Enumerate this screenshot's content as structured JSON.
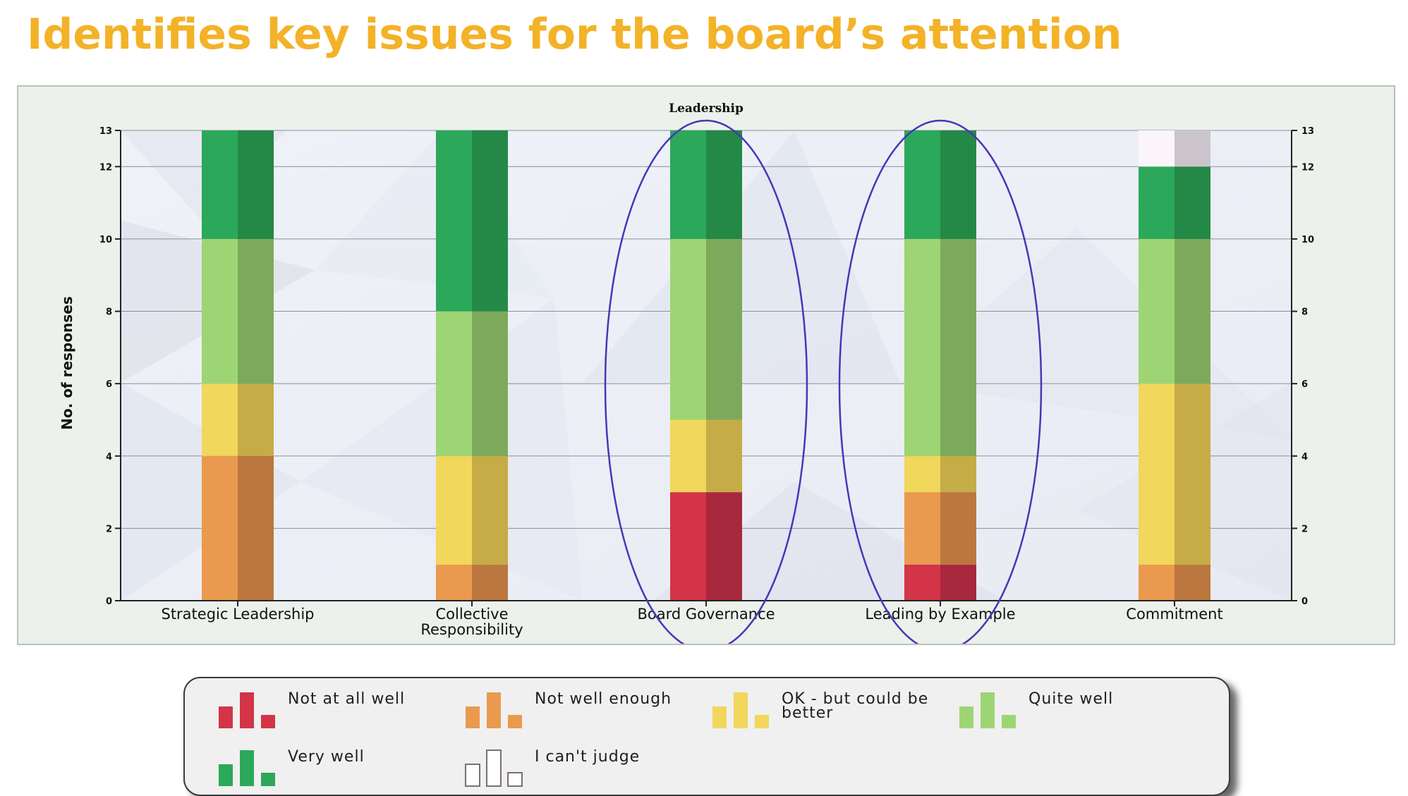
{
  "title": "Identifies key issues for the board’s attention",
  "chart_data": {
    "type": "bar",
    "stacked": true,
    "title": "Leadership",
    "ylabel": "No. of responses",
    "xlabel": "",
    "categories": [
      "Strategic Leadership",
      "Collective Responsibility",
      "Board Governance",
      "Leading by Example",
      "Commitment"
    ],
    "category_lines": [
      [
        "Strategic Leadership"
      ],
      [
        "Collective",
        "Responsibility"
      ],
      [
        "Board Governance"
      ],
      [
        "Leading by Example"
      ],
      [
        "Commitment"
      ]
    ],
    "ylim": [
      0,
      13
    ],
    "yticks": [
      0,
      2,
      4,
      6,
      8,
      10,
      12,
      13
    ],
    "grid": true,
    "series": [
      {
        "name": "Not at all well",
        "values": [
          0,
          0,
          3,
          1,
          0
        ],
        "color": "#d33447",
        "shade": "#a8283d"
      },
      {
        "name": "Not well enough",
        "values": [
          4,
          1,
          0,
          2,
          1
        ],
        "color": "#ea9a4e",
        "shade": "#bb773e"
      },
      {
        "name": "OK - but could be better",
        "values": [
          2,
          3,
          2,
          1,
          5
        ],
        "color": "#f1d75b",
        "shade": "#c6ac47"
      },
      {
        "name": "Quite well",
        "values": [
          4,
          4,
          5,
          6,
          4
        ],
        "color": "#9dd574",
        "shade": "#7daa5a"
      },
      {
        "name": "Very well",
        "values": [
          3,
          5,
          3,
          3,
          2
        ],
        "color": "#2ca85a",
        "shade": "#248847"
      },
      {
        "name": "I can't judge",
        "values": [
          0,
          0,
          0,
          0,
          1
        ],
        "color": "#fbf5fa",
        "shade": "#cbc5cb"
      }
    ],
    "highlighted": [
      "Board Governance",
      "Leading by Example"
    ],
    "highlight_color": "#4b35b8"
  }
}
